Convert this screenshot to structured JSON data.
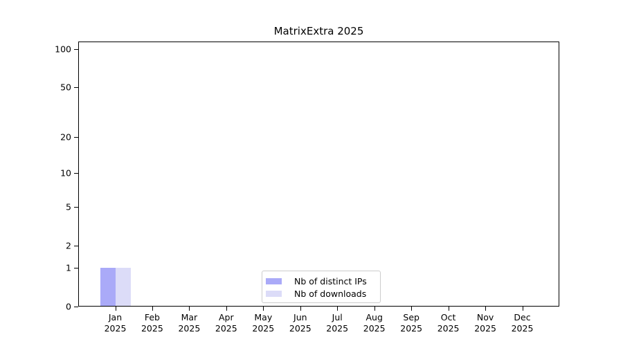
{
  "chart_data": {
    "type": "bar",
    "title": "MatrixExtra 2025",
    "categories": [
      "Jan",
      "Feb",
      "Mar",
      "Apr",
      "May",
      "Jun",
      "Jul",
      "Aug",
      "Sep",
      "Oct",
      "Nov",
      "Dec"
    ],
    "category_year": "2025",
    "series": [
      {
        "name": "Nb of distinct IPs",
        "color": "#aaaaf8",
        "values": [
          1,
          0,
          0,
          0,
          0,
          0,
          0,
          0,
          0,
          0,
          0,
          0
        ]
      },
      {
        "name": "Nb of downloads",
        "color": "#dcdcf8",
        "values": [
          1,
          0,
          0,
          0,
          0,
          0,
          0,
          0,
          0,
          0,
          0,
          0
        ]
      }
    ],
    "xlabel": "",
    "ylabel": "",
    "yscale": "log10(1+v)",
    "ylim": [
      0,
      115
    ],
    "yticks": [
      0,
      1,
      2,
      5,
      10,
      20,
      50,
      100
    ],
    "ytick_labels": [
      "0",
      "1",
      "2",
      "5",
      "10",
      "20",
      "50",
      "100"
    ],
    "minor_grid_values": [
      2,
      3,
      4,
      5,
      6,
      7,
      8,
      9,
      20,
      30,
      40,
      50,
      60,
      70,
      80,
      90
    ],
    "major_grid_values": [
      1,
      10,
      100
    ],
    "grid": "horizontal",
    "legend_position": "lower center inside plot"
  },
  "colors": {
    "background": "#ffffff",
    "spine": "#000000",
    "grid_major": "#c3c3c3",
    "grid_minor": "#ededed",
    "text": "#000000",
    "legend_border": "#cccccc",
    "bar_distinct_ips": "#aaaaf8",
    "bar_downloads": "#dcdcf8"
  }
}
